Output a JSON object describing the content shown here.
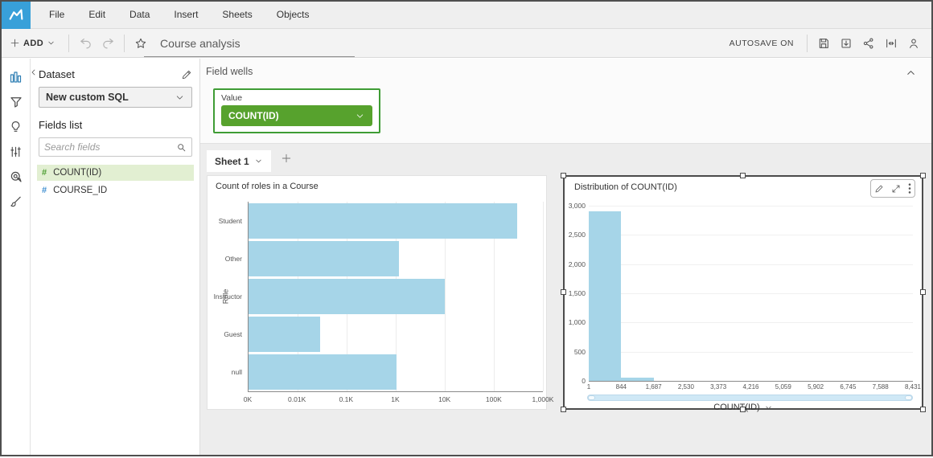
{
  "menubar": {
    "items": [
      {
        "label": "File"
      },
      {
        "label": "Edit"
      },
      {
        "label": "Data"
      },
      {
        "label": "Insert"
      },
      {
        "label": "Sheets"
      },
      {
        "label": "Objects"
      }
    ]
  },
  "toolbar": {
    "add_label": "ADD",
    "analysis_title": "Course analysis",
    "autosave_label": "AUTOSAVE ON",
    "icons": [
      "save-icon",
      "export-icon",
      "share-icon",
      "fit-width-icon",
      "user-icon"
    ]
  },
  "rail": {
    "icons": [
      "visualize-bar-chart-icon",
      "filter-funnel-icon",
      "insights-bulb-icon",
      "parameters-sliders-icon",
      "actions-target-icon",
      "themes-brush-icon"
    ],
    "active_color": "#2e7eb3"
  },
  "dataset_panel": {
    "title": "Dataset",
    "dataset_name": "New custom SQL",
    "fields_list_label": "Fields list",
    "search_placeholder": "Search fields",
    "fields": [
      {
        "name": "COUNT(ID)",
        "type_glyph": "#",
        "selected": true
      },
      {
        "name": "COURSE_ID",
        "type_glyph": "#",
        "selected": false
      }
    ]
  },
  "field_wells": {
    "header": "Field wells",
    "well_label": "Value",
    "well_value": "COUNT(ID)",
    "accent_green": "#57a22d"
  },
  "sheet_tabs": {
    "active_tab": "Sheet 1"
  },
  "chart_data": [
    {
      "type": "bar",
      "orientation": "horizontal",
      "title": "Count of roles in a Course",
      "ylabel": "Role",
      "xlabel": "",
      "x_scale": "log",
      "categories": [
        "Student",
        "Other",
        "Instructor",
        "Guest",
        "null"
      ],
      "values": [
        300000,
        1150,
        10000,
        29,
        1050
      ],
      "xtick_labels": [
        "0K",
        "0.01K",
        "0.1K",
        "1K",
        "10K",
        "100K",
        "1,000K"
      ],
      "bar_color": "#a6d5e8",
      "grid": true
    },
    {
      "type": "histogram",
      "title": "Distribution of COUNT(ID)",
      "xlabel": "COUNT(ID)",
      "bin_edges": [
        1,
        844,
        1687,
        2530,
        3373,
        4216,
        5059,
        5902,
        6745,
        7588,
        8431
      ],
      "values": [
        2900,
        50,
        0,
        0,
        0,
        0,
        0,
        0,
        0,
        0
      ],
      "ylim": [
        0,
        3000
      ],
      "xtick_labels": [
        "1",
        "844",
        "1,687",
        "2,530",
        "3,373",
        "4,216",
        "5,059",
        "5,902",
        "6,745",
        "7,588",
        "8,431"
      ],
      "ytick_labels": [
        "3,000",
        "2,500",
        "2,000",
        "1,500",
        "1,000",
        "500",
        "0"
      ],
      "bar_color": "#a6d5e8",
      "selected": true,
      "grid": true
    }
  ]
}
